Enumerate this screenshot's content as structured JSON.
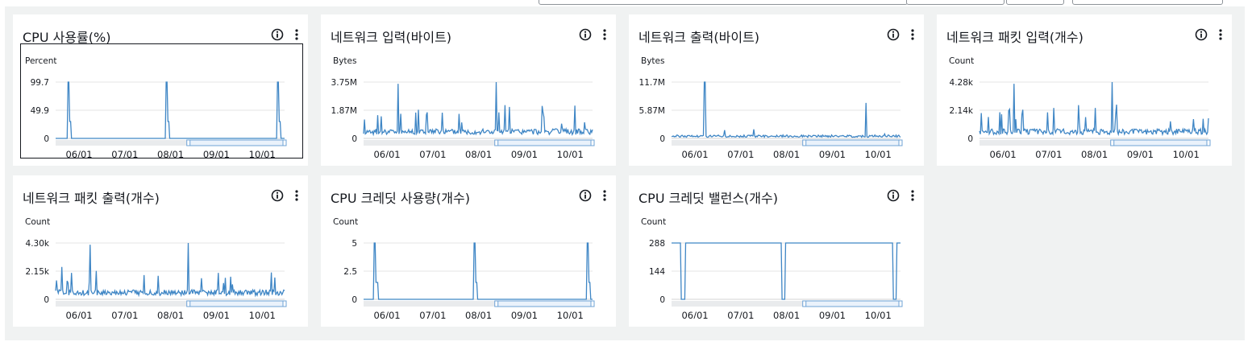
{
  "colors": {
    "line": "#3f86c5",
    "grid": "#e6e6e6",
    "baseline": "#d3d3d3",
    "brush": "#6fa3d6"
  },
  "widgets": [
    {
      "title": "CPU 사용률(%)",
      "unit": "Percent",
      "yticks": [
        "99.7",
        "49.9",
        "0"
      ],
      "xticks": [
        "06/01",
        "07/01",
        "08/01",
        "09/01",
        "10/01"
      ],
      "selected": true,
      "chart_data": {
        "type": "line",
        "ylim": [
          0,
          99.7
        ],
        "x_range": [
          "05/22",
          "10/28"
        ],
        "pattern": "spikes",
        "spikes_at": [
          0.055,
          0.485,
          0.97
        ],
        "spike_values": [
          99.7,
          99.7,
          99.7
        ],
        "baseline": 0
      }
    },
    {
      "title": "네트워크 입력(바이트)",
      "unit": "Bytes",
      "yticks": [
        "3.75M",
        "1.87M",
        "0"
      ],
      "xticks": [
        "06/01",
        "07/01",
        "08/01",
        "09/01",
        "10/01"
      ],
      "chart_data": {
        "type": "line",
        "ylim": [
          0,
          3750000
        ],
        "pattern": "noisy-spikes",
        "peak": 3750000
      }
    },
    {
      "title": "네트워크 출력(바이트)",
      "unit": "Bytes",
      "yticks": [
        "11.7M",
        "5.87M",
        "0"
      ],
      "xticks": [
        "06/01",
        "07/01",
        "08/01",
        "09/01",
        "10/01"
      ],
      "chart_data": {
        "type": "line",
        "ylim": [
          0,
          11700000
        ],
        "pattern": "low-with-spikes",
        "peak": 11700000
      }
    },
    {
      "title": "네트워크 패킷 입력(개수)",
      "unit": "Count",
      "yticks": [
        "4.28k",
        "2.14k",
        "0"
      ],
      "xticks": [
        "06/01",
        "07/01",
        "08/01",
        "09/01",
        "10/01"
      ],
      "chart_data": {
        "type": "line",
        "ylim": [
          0,
          4280
        ],
        "pattern": "noisy-spikes",
        "peak": 4280
      }
    },
    {
      "title": "네트워크 패킷 출력(개수)",
      "unit": "Count",
      "yticks": [
        "4.30k",
        "2.15k",
        "0"
      ],
      "xticks": [
        "06/01",
        "07/01",
        "08/01",
        "09/01",
        "10/01"
      ],
      "chart_data": {
        "type": "line",
        "ylim": [
          0,
          4300
        ],
        "pattern": "noisy-spikes",
        "peak": 4300
      }
    },
    {
      "title": "CPU 크레딧 사용량(개수)",
      "unit": "Count",
      "yticks": [
        "5",
        "2.5",
        "0"
      ],
      "xticks": [
        "06/01",
        "07/01",
        "08/01",
        "09/01",
        "10/01"
      ],
      "chart_data": {
        "type": "line",
        "ylim": [
          0,
          5
        ],
        "pattern": "spikes",
        "spikes_at": [
          0.05,
          0.485,
          0.98
        ],
        "spike_values": [
          5,
          5,
          5
        ],
        "baseline": 0
      }
    },
    {
      "title": "CPU 크레딧 밸런스(개수)",
      "unit": "Count",
      "yticks": [
        "288",
        "144",
        "0"
      ],
      "xticks": [
        "06/01",
        "07/01",
        "08/01",
        "09/01",
        "10/01"
      ],
      "chart_data": {
        "type": "line",
        "ylim": [
          0,
          288
        ],
        "pattern": "high-with-dips",
        "dips_at": [
          0.05,
          0.49,
          0.975
        ],
        "high": 288,
        "low": 0
      }
    }
  ]
}
